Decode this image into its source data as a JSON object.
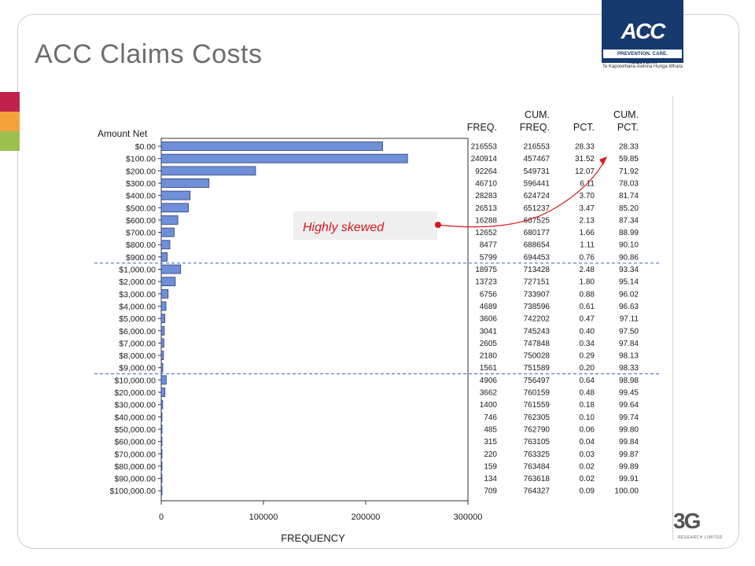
{
  "slide": {
    "title": "ACC Claims Costs"
  },
  "logo": {
    "mark": "ACC",
    "tagline": "PREVENTION. CARE. RECOVERY.",
    "maori": "Te Kaporeihana Āwhina Hunga Whara"
  },
  "corner_logo": {
    "mark": "3G",
    "sub": "RESEARCH LIMITED"
  },
  "annotation": {
    "text": "Highly skewed",
    "color": "#d7191c"
  },
  "colors": {
    "bar": "#6f8fd8",
    "bar_stroke": "#2f3e7a",
    "dashed": "#4a7ec2"
  },
  "chart_data": {
    "type": "bar",
    "orientation": "horizontal",
    "ylabel": "Amount Net",
    "xlabel": "FREQUENCY",
    "xlim": [
      0,
      300000
    ],
    "xticks": [
      "0",
      "100000",
      "200000",
      "300000"
    ],
    "categories": [
      "$0.00",
      "$100.00",
      "$200.00",
      "$300.00",
      "$400.00",
      "$500.00",
      "$600.00",
      "$700.00",
      "$800.00",
      "$900.00",
      "$1,000.00",
      "$2,000.00",
      "$3,000.00",
      "$4,000.00",
      "$5,000.00",
      "$6,000.00",
      "$7,000.00",
      "$8,000.00",
      "$9,000.00",
      "$10,000.00",
      "$20,000.00",
      "$30,000.00",
      "$40,000.00",
      "$50,000.00",
      "$60,000.00",
      "$70,000.00",
      "$80,000.00",
      "$90,000.00",
      "$100,000.00"
    ],
    "values": [
      216553,
      240914,
      92264,
      46710,
      28283,
      26513,
      16288,
      12652,
      8477,
      5799,
      18975,
      13723,
      6756,
      4689,
      3606,
      3041,
      2605,
      2180,
      1561,
      4906,
      3662,
      1400,
      746,
      485,
      315,
      220,
      159,
      134,
      709
    ],
    "table": {
      "headers": [
        [
          "",
          "FREQ."
        ],
        [
          "CUM.",
          "FREQ."
        ],
        [
          "",
          "PCT."
        ],
        [
          "CUM.",
          "PCT."
        ]
      ],
      "cum_freq": [
        "216553",
        "457467",
        "549731",
        "596441",
        "624724",
        "651237",
        "667525",
        "680177",
        "688654",
        "694453",
        "713428",
        "727151",
        "733907",
        "738596",
        "742202",
        "745243",
        "747848",
        "750028",
        "751589",
        "756497",
        "760159",
        "761559",
        "762305",
        "762790",
        "763105",
        "763325",
        "763484",
        "763618",
        "764327"
      ],
      "pct": [
        "28.33",
        "31.52",
        "12.07",
        "6.11",
        "3.70",
        "3.47",
        "2.13",
        "1.66",
        "1.11",
        "0.76",
        "2.48",
        "1.80",
        "0.88",
        "0.61",
        "0.47",
        "0.40",
        "0.34",
        "0.29",
        "0.20",
        "0.64",
        "0.48",
        "0.18",
        "0.10",
        "0.06",
        "0.04",
        "0.03",
        "0.02",
        "0.02",
        "0.09"
      ],
      "cum_pct": [
        "28.33",
        "59.85",
        "71.92",
        "78.03",
        "81.74",
        "85.20",
        "87.34",
        "88.99",
        "90.10",
        "90.86",
        "93.34",
        "95.14",
        "96.02",
        "96.63",
        "97.11",
        "97.50",
        "97.84",
        "98.13",
        "98.33",
        "98.98",
        "99.45",
        "99.64",
        "99.74",
        "99.80",
        "99.84",
        "99.87",
        "99.89",
        "99.91",
        "100.00"
      ]
    }
  }
}
